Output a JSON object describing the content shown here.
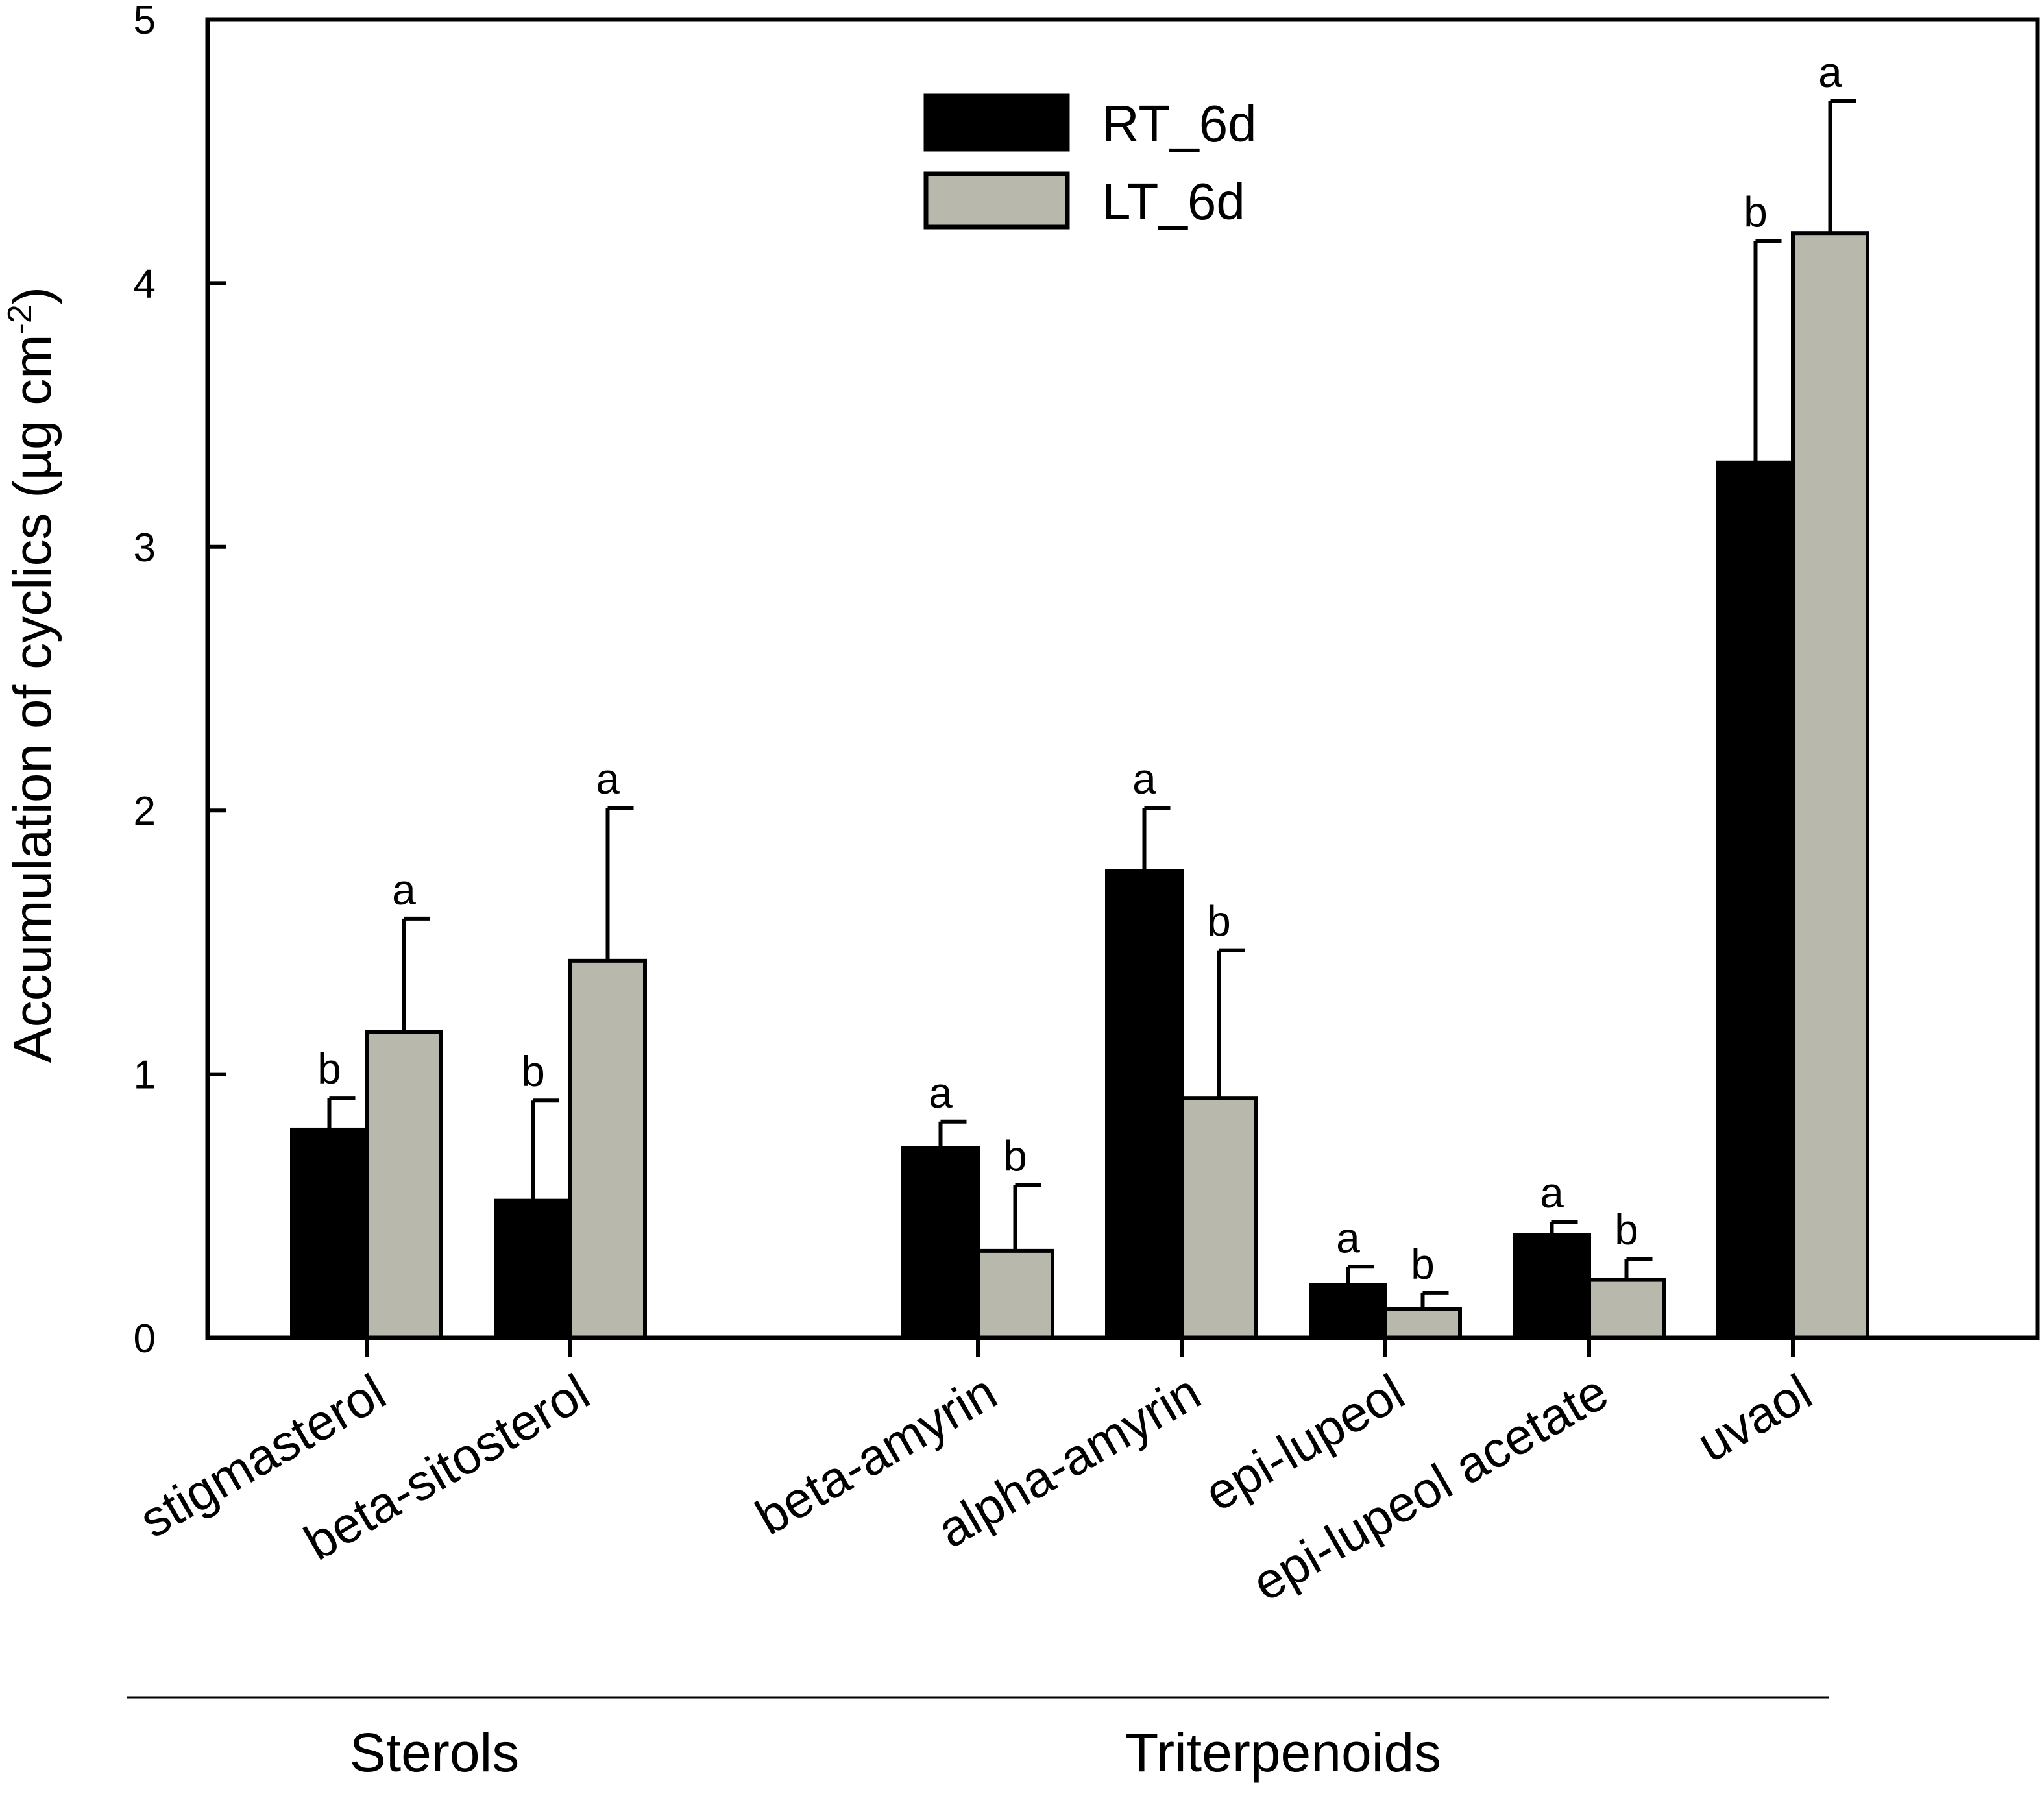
{
  "chart_data": {
    "type": "bar",
    "title": "",
    "xlabel": "",
    "ylabel": "Accumulation of cyclics (µg cm",
    "ylabel_superscript": "-2",
    "ylabel_suffix": ")",
    "ylim": [
      0,
      5
    ],
    "yticks": [
      "0",
      "1",
      "2",
      "3",
      "4",
      "5"
    ],
    "legend_position": "top-center",
    "categories": [
      "stigmasterol",
      "beta-sitosterol",
      "beta-amyrin",
      "alpha-amyrin",
      "epi-lupeol",
      "epi-lupeol acetate",
      "uvaol"
    ],
    "category_slots": [
      1,
      2,
      4,
      5,
      6,
      7,
      8
    ],
    "series": [
      {
        "name": "RT_6d",
        "color": "#000000",
        "values": [
          0.79,
          0.52,
          0.72,
          1.77,
          0.2,
          0.39,
          3.32
        ],
        "errors": [
          0.12,
          0.38,
          0.1,
          0.24,
          0.07,
          0.05,
          0.84
        ],
        "significance": [
          "b",
          "b",
          "a",
          "a",
          "a",
          "a",
          "b"
        ]
      },
      {
        "name": "LT_6d",
        "color": "#b8b8ac",
        "values": [
          1.16,
          1.43,
          0.33,
          0.91,
          0.11,
          0.22,
          4.19
        ],
        "errors": [
          0.43,
          0.58,
          0.25,
          0.56,
          0.06,
          0.08,
          0.5
        ],
        "significance": [
          "a",
          "a",
          "b",
          "b",
          "b",
          "b",
          "a"
        ]
      }
    ],
    "groups": [
      {
        "label": "Sterols",
        "from": 0,
        "to": 1
      },
      {
        "label": "Triterpenoids",
        "from": 2,
        "to": 6
      }
    ]
  }
}
